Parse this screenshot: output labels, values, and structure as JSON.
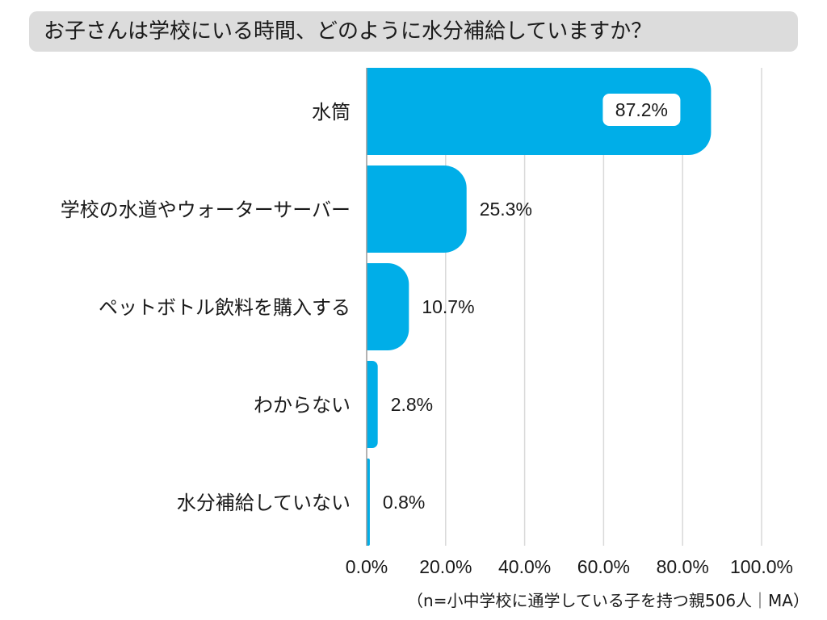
{
  "header": {
    "title": "お子さんは学校にいる時間、どのように水分補給していますか？"
  },
  "footnote": "（n=小中学校に通学している子を持つ親506人｜MA）",
  "colors": {
    "bar": "#00aee8",
    "grid": "#d9d9d9",
    "axis": "#9a9a9a",
    "title_bg": "#dcdcdc"
  },
  "chart_data": {
    "type": "bar",
    "orientation": "horizontal",
    "title": "お子さんは学校にいる時間、どのように水分補給していますか？",
    "categories": [
      "水筒",
      "学校の水道やウォーターサーバー",
      "ペットボトル飲料を購入する",
      "わからない",
      "水分補給していない"
    ],
    "values": [
      87.2,
      25.3,
      10.7,
      2.8,
      0.8
    ],
    "data_labels": [
      "87.2%",
      "25.3%",
      "10.7%",
      "2.8%",
      "0.8%"
    ],
    "xlim": [
      0,
      100
    ],
    "xticks": [
      0,
      20,
      40,
      60,
      80,
      100
    ],
    "xtick_labels": [
      "0.0%",
      "20.0%",
      "40.0%",
      "60.0%",
      "80.0%",
      "100.0%"
    ],
    "xlabel": "",
    "ylabel": "",
    "grid": true
  }
}
